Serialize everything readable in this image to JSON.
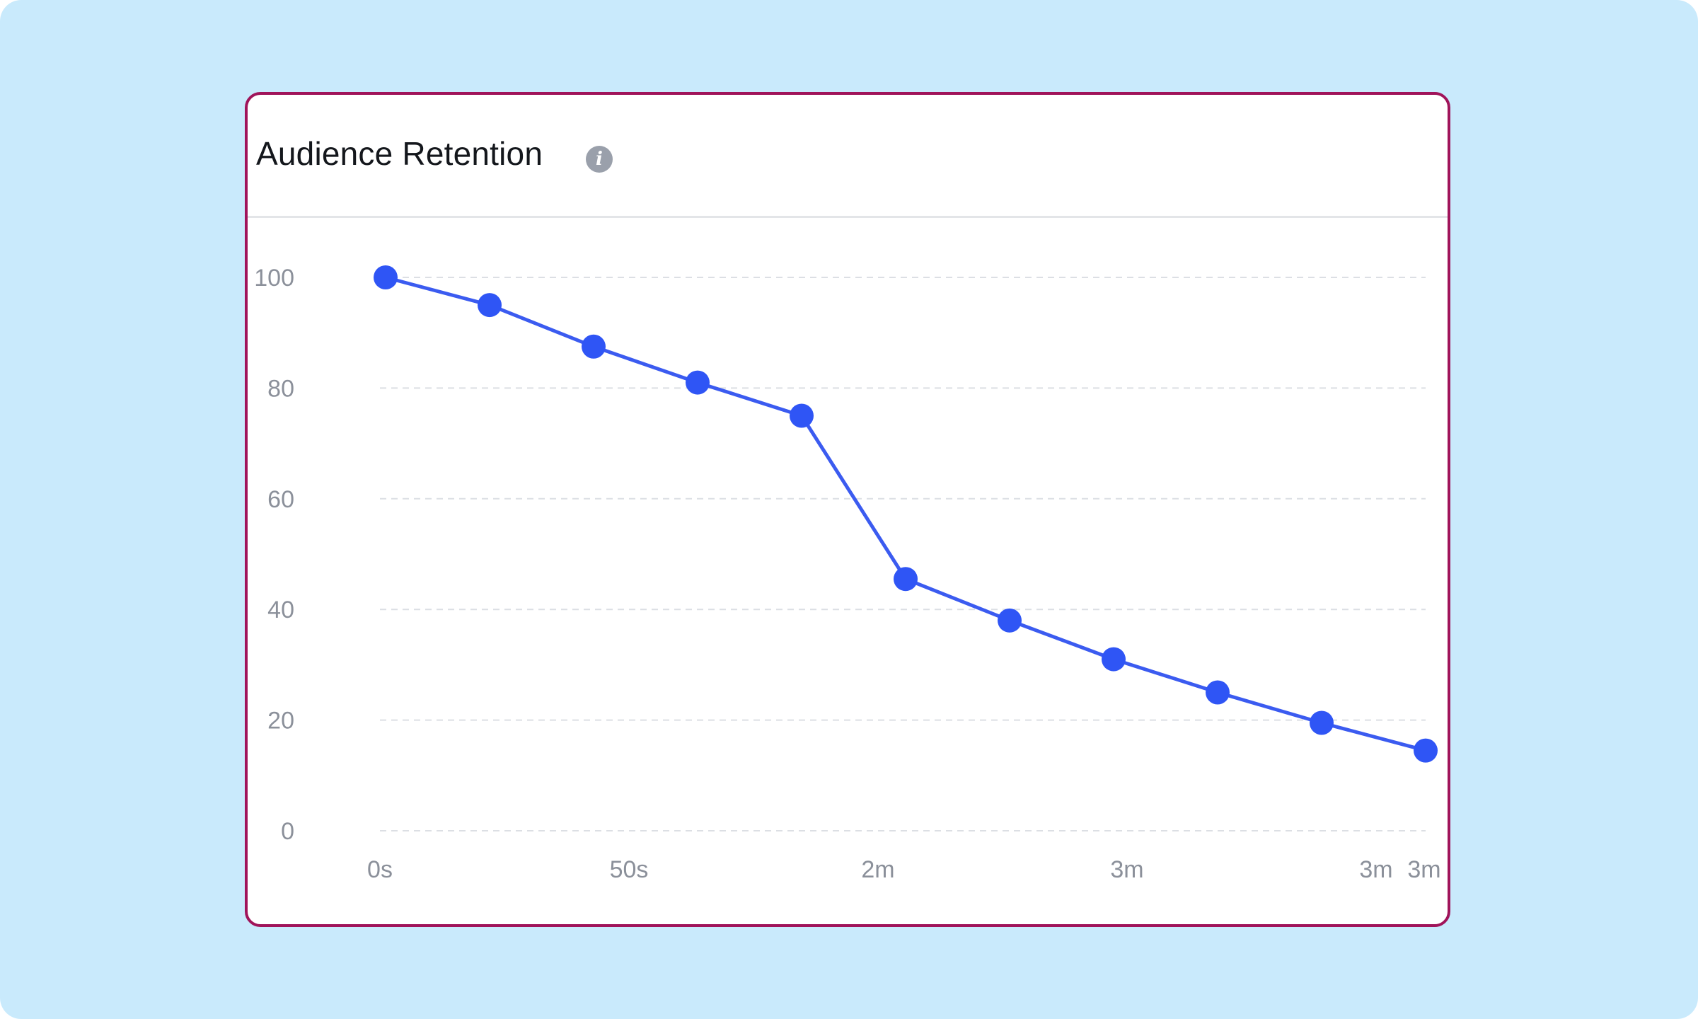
{
  "card": {
    "title": "Audience Retention",
    "info_icon": "info-icon"
  },
  "colors": {
    "background": "#c9eafc",
    "card_border": "#a0145a",
    "line": "#3b5bf0",
    "point": "#2f55f5",
    "grid": "#dcdfe4",
    "tick_text": "#8b909a"
  },
  "chart_data": {
    "type": "line",
    "title": "Audience Retention",
    "xlabel": "",
    "ylabel": "",
    "ylim": [
      0,
      100
    ],
    "y_ticks": [
      0,
      20,
      40,
      60,
      80,
      100
    ],
    "x_tick_labels": [
      "0s",
      "50s",
      "2m",
      "3m",
      "3m",
      "3m"
    ],
    "grid": "horizontal dashed",
    "series": [
      {
        "values": [
          100,
          95,
          87.5,
          81,
          75,
          45.5,
          38,
          31,
          25,
          19.5,
          14.5
        ]
      }
    ]
  }
}
